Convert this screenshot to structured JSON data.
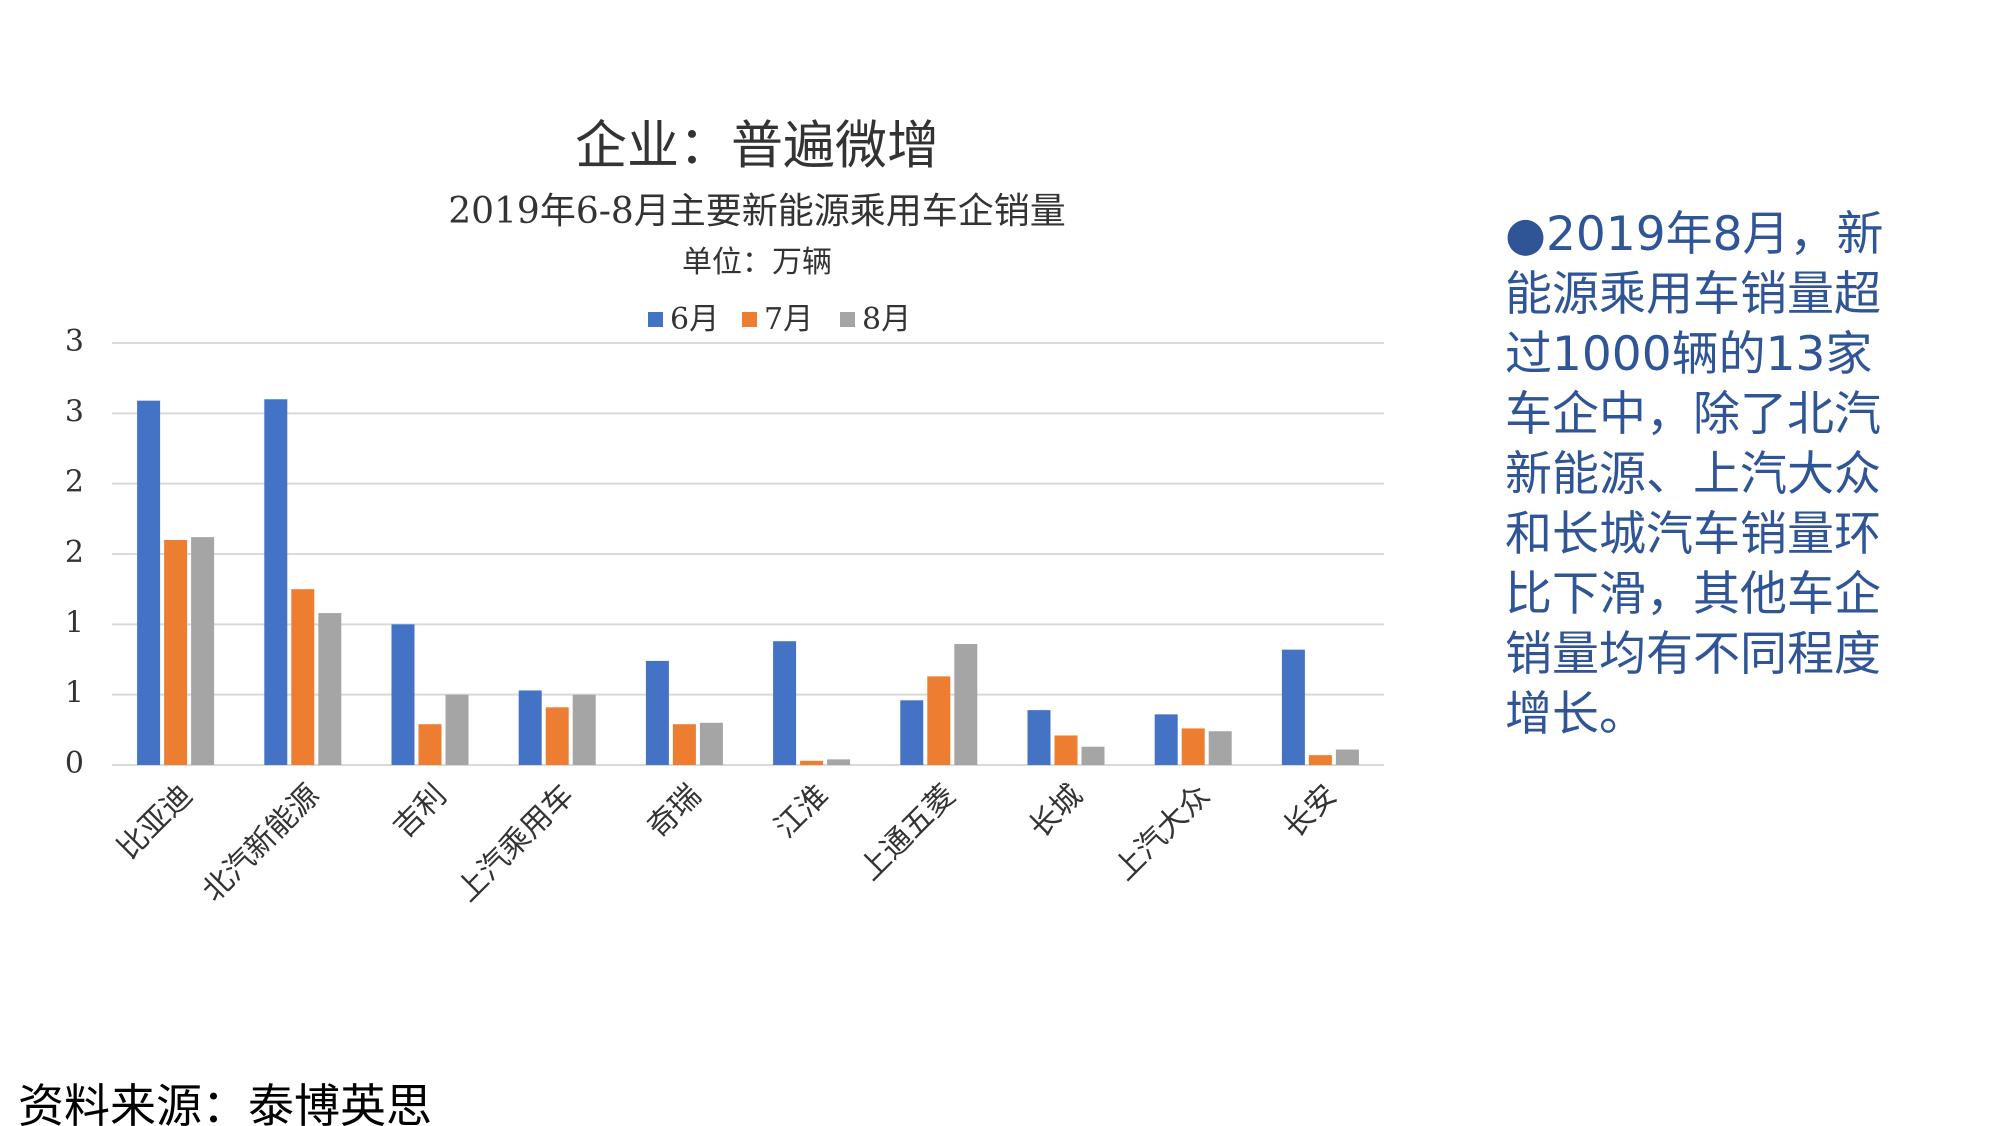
{
  "chart_data": {
    "type": "bar",
    "title": "企业：普遍微增",
    "subtitle": "2019年6-8月主要新能源乘用车企销量",
    "unit": "单位：万辆",
    "categories": [
      "比亚迪",
      "北汽新能源",
      "吉利",
      "上汽乘用车",
      "奇瑞",
      "江淮",
      "上通五菱",
      "长城",
      "上汽大众",
      "长安"
    ],
    "series": [
      {
        "name": "6月",
        "color": "#4472c4",
        "values": [
          2.59,
          2.6,
          1.0,
          0.53,
          0.74,
          0.88,
          0.46,
          0.39,
          0.36,
          0.82
        ]
      },
      {
        "name": "7月",
        "color": "#ed7d31",
        "values": [
          1.6,
          1.25,
          0.29,
          0.41,
          0.29,
          0.03,
          0.63,
          0.21,
          0.26,
          0.07
        ]
      },
      {
        "name": "8月",
        "color": "#a5a5a5",
        "values": [
          1.62,
          1.08,
          0.5,
          0.5,
          0.3,
          0.04,
          0.86,
          0.13,
          0.24,
          0.11
        ]
      }
    ],
    "ylim": [
      0,
      3
    ],
    "yticks": [
      0,
      {
        "value": 0.5,
        "label": "1"
      },
      {
        "value": 1,
        "label": "1"
      },
      {
        "value": 1.5,
        "label": "2"
      },
      {
        "value": 2,
        "label": "2"
      },
      {
        "value": 2.5,
        "label": "3"
      },
      {
        "value": 3,
        "label": "3"
      }
    ],
    "grid": true,
    "legend": "top"
  },
  "note": "●2019年8月，新能源乘用车销量超过1000辆的13家车企中，除了北汽新能源、上汽大众和长城汽车销量环比下滑，其他车企销量均有不同程度增长。",
  "source": "资料来源：泰博英思"
}
